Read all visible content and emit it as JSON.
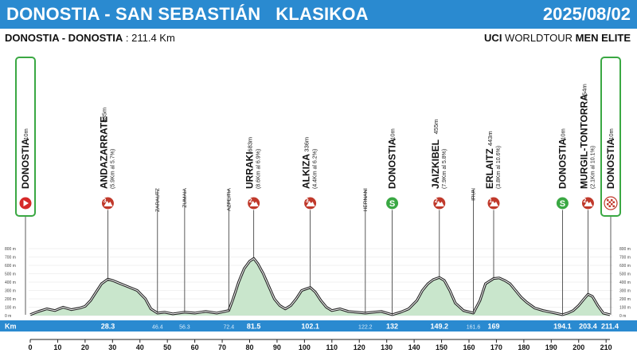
{
  "header": {
    "title": "DONOSTIA - SAN SEBASTIÁN   KLASIKOA",
    "date": "2025/08/02",
    "route_bold": "DONOSTIA - DONOSTIA",
    "route_rest": " : 211.4 Km",
    "category_bold_1": "UCI",
    "category_mid": " WORLDTOUR ",
    "category_bold_2": "MEN ELITE",
    "bar_color": "#2a8ad0"
  },
  "colors": {
    "profile_fill": "#c9e6cc",
    "profile_dark": "#4b9a52",
    "km_bar": "#2a8ad0",
    "climb_icon": "#c0392b",
    "sprint_icon": "#3aa843",
    "start_icon": "#d62828",
    "finish_box_border": "#3aa843"
  },
  "chart_data": {
    "type": "area",
    "title": "",
    "xlabel": "",
    "ylabel": "",
    "xlim": [
      0,
      211.4
    ],
    "ylim": [
      0,
      800
    ],
    "axis_ticks_x": [
      0,
      10,
      20,
      30,
      40,
      50,
      60,
      70,
      80,
      90,
      100,
      110,
      120,
      130,
      140,
      150,
      160,
      170,
      180,
      190,
      200,
      210
    ],
    "axis_ticks_y": [
      0,
      100,
      200,
      300,
      400,
      500,
      600,
      700,
      800
    ],
    "axis_tick_label_y": [
      "0 m",
      "100 m",
      "200 m",
      "300 m",
      "400 m",
      "500 m",
      "600 m",
      "700 m",
      "800 m"
    ],
    "km_label": "Km",
    "profile": {
      "x": [
        0,
        3,
        6,
        9,
        12,
        15,
        18,
        20,
        22,
        24,
        26,
        28.3,
        30,
        33,
        36,
        39,
        42,
        44,
        46.4,
        49,
        52,
        56.3,
        60,
        64,
        68,
        72.4,
        74,
        76,
        78,
        80,
        81.5,
        83,
        85,
        87,
        89,
        91,
        93,
        95,
        97,
        99,
        102.1,
        104,
        106,
        108,
        110,
        113,
        116,
        119,
        122.2,
        125,
        128,
        132,
        135,
        138,
        141,
        143,
        145,
        147,
        149.2,
        151,
        153,
        155,
        158,
        161.6,
        164,
        166,
        169,
        171,
        173,
        175,
        177,
        179,
        181,
        184,
        187,
        190,
        194.1,
        196,
        198,
        200,
        202,
        203.4,
        205,
        207,
        209,
        211.4
      ],
      "y": [
        10,
        50,
        80,
        60,
        100,
        70,
        90,
        110,
        180,
        280,
        380,
        435,
        420,
        380,
        340,
        300,
        200,
        80,
        30,
        40,
        20,
        40,
        30,
        50,
        30,
        60,
        200,
        400,
        560,
        650,
        683,
        620,
        500,
        350,
        200,
        120,
        80,
        120,
        200,
        300,
        336,
        280,
        180,
        100,
        60,
        80,
        50,
        40,
        30,
        40,
        50,
        10,
        40,
        80,
        180,
        300,
        380,
        430,
        455,
        420,
        300,
        150,
        60,
        30,
        180,
        380,
        443,
        450,
        420,
        380,
        300,
        220,
        160,
        90,
        60,
        40,
        10,
        30,
        60,
        120,
        200,
        254,
        230,
        120,
        30,
        10
      ]
    },
    "km_markers": [
      "28.3",
      "46.4",
      "56.3",
      "72.4",
      "81.5",
      "102.1",
      "122.2",
      "132",
      "149.2",
      "161.6",
      "169",
      "194.1",
      "203.4",
      "211.4"
    ],
    "km_marker_values": [
      28.3,
      46.4,
      56.3,
      72.4,
      81.5,
      102.1,
      122.2,
      132,
      149.2,
      161.6,
      169,
      194.1,
      203.4,
      211.4
    ],
    "waypoints": [
      {
        "name": "DONOSTIA",
        "alt": "10m",
        "detail": "",
        "km": 0,
        "type": "start",
        "cat": "",
        "boxed": true
      },
      {
        "name": "ANDAZARRATE",
        "alt": "435m",
        "detail": "(5.9Km al 5.7%)",
        "km": 28.3,
        "type": "climb",
        "cat": "3"
      },
      {
        "name": "ZARAUTZ",
        "alt": "",
        "detail": "",
        "km": 46.4,
        "type": "town",
        "cat": ""
      },
      {
        "name": "ZUMAIA",
        "alt": "",
        "detail": "",
        "km": 56.3,
        "type": "town",
        "cat": ""
      },
      {
        "name": "AZPEITIA",
        "alt": "",
        "detail": "",
        "km": 72.4,
        "type": "town",
        "cat": ""
      },
      {
        "name": "URRAKI",
        "alt": "683m",
        "detail": "(8.6Km al 6.9%)",
        "km": 81.5,
        "type": "climb",
        "cat": "2"
      },
      {
        "name": "ALKIZA",
        "alt": "336m",
        "detail": "(4.4Km al 6.2%)",
        "km": 102.1,
        "type": "climb",
        "cat": "3"
      },
      {
        "name": "HERNANI",
        "alt": "",
        "detail": "",
        "km": 122.2,
        "type": "town",
        "cat": ""
      },
      {
        "name": "DONOSTIA",
        "alt": "10m",
        "detail": "",
        "km": 132,
        "type": "sprint",
        "cat": "S"
      },
      {
        "name": "JAIZKIBEL",
        "alt": "455m",
        "detail": "(7.9Km al 5.8%)",
        "km": 149.2,
        "type": "climb",
        "cat": "2"
      },
      {
        "name": "IRUN",
        "alt": "",
        "detail": "",
        "km": 161.6,
        "type": "town",
        "cat": ""
      },
      {
        "name": "ERLAITZ",
        "alt": "443m",
        "detail": "(3.8Km al 10.6%)",
        "km": 169,
        "type": "climb",
        "cat": "1"
      },
      {
        "name": "DONOSTIA",
        "alt": "10m",
        "detail": "",
        "km": 194.1,
        "type": "sprint",
        "cat": "S"
      },
      {
        "name": "MURGIL-TONTORRA",
        "alt": "254m",
        "detail": "(2.1Km al 10.1%)",
        "km": 203.4,
        "type": "climb",
        "cat": "2"
      },
      {
        "name": "DONOSTIA",
        "alt": "10m",
        "detail": "",
        "km": 211.4,
        "type": "finish",
        "cat": "",
        "boxed": true
      }
    ]
  }
}
